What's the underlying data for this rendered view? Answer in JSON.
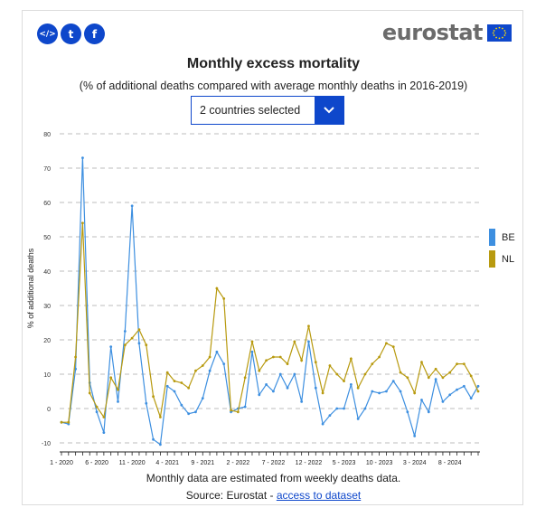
{
  "header": {
    "share_icons": [
      {
        "icon": "embed-code-icon",
        "glyph": "</>"
      },
      {
        "icon": "twitter-icon",
        "glyph": "t"
      },
      {
        "icon": "facebook-icon",
        "glyph": "f"
      }
    ],
    "logo_text": "eurostat"
  },
  "dropdown": {
    "value": "2 countries selected"
  },
  "footer": {
    "note": "Monthly data are estimated from weekly deaths data.",
    "source_prefix": "Source: Eurostat - ",
    "source_link": "access to dataset"
  },
  "chart_data": {
    "type": "line",
    "title": "Monthly excess mortality",
    "subtitle": "(% of additional deaths compared with average monthly deaths in 2016-2019)",
    "ylabel": "% of additional deaths",
    "ylim": [
      -10,
      80
    ],
    "yticks": [
      -10,
      0,
      10,
      20,
      30,
      40,
      50,
      60,
      70,
      80
    ],
    "grid": true,
    "legend_position": "right",
    "xtick_labels": [
      {
        "index": 0,
        "label": "1 - 2020"
      },
      {
        "index": 5,
        "label": "6 - 2020"
      },
      {
        "index": 10,
        "label": "11 - 2020"
      },
      {
        "index": 15,
        "label": "4 - 2021"
      },
      {
        "index": 20,
        "label": "9 - 2021"
      },
      {
        "index": 25,
        "label": "2 - 2022"
      },
      {
        "index": 30,
        "label": "7 - 2022"
      },
      {
        "index": 35,
        "label": "12 - 2022"
      },
      {
        "index": 40,
        "label": "5 - 2023"
      },
      {
        "index": 45,
        "label": "10 - 2023"
      },
      {
        "index": 50,
        "label": "3 - 2024"
      },
      {
        "index": 55,
        "label": "8 - 2024"
      }
    ],
    "series": [
      {
        "name": "BE",
        "color": "#3d8fe0",
        "values": [
          -4,
          -4.5,
          11.5,
          73,
          7.5,
          -1,
          -7,
          18,
          2,
          22.5,
          59,
          19,
          1.5,
          -9,
          -10.5,
          6.5,
          5,
          1,
          -1.5,
          -1,
          3,
          11,
          16.5,
          13,
          -1,
          0,
          0.5,
          16.5,
          4,
          7,
          5,
          10,
          6,
          10,
          2,
          19.5,
          6,
          -4.5,
          -2,
          0,
          0,
          7,
          -3,
          0,
          5,
          4.5,
          5,
          8,
          5,
          -1,
          -8,
          2.5,
          -1,
          8.5,
          2,
          4,
          5.5,
          6.5,
          3,
          6.5
        ]
      },
      {
        "name": "NL",
        "color": "#b89a0f",
        "values": [
          -4,
          -4,
          15,
          54,
          4.5,
          0.5,
          -2.5,
          9,
          5.5,
          18.5,
          20.5,
          23,
          18.5,
          3.5,
          -2.5,
          10.5,
          8,
          7.5,
          6,
          11,
          12.5,
          15,
          35,
          32,
          -0.5,
          -1,
          9,
          19.5,
          11,
          14,
          15,
          15,
          13,
          19.5,
          14,
          24,
          13.5,
          4.5,
          12.5,
          10,
          8,
          14.5,
          6,
          10,
          13,
          15,
          19,
          18,
          10.5,
          9,
          4.5,
          13.5,
          9,
          11.5,
          9,
          10.5,
          13,
          13,
          9.5,
          5
        ]
      }
    ]
  }
}
